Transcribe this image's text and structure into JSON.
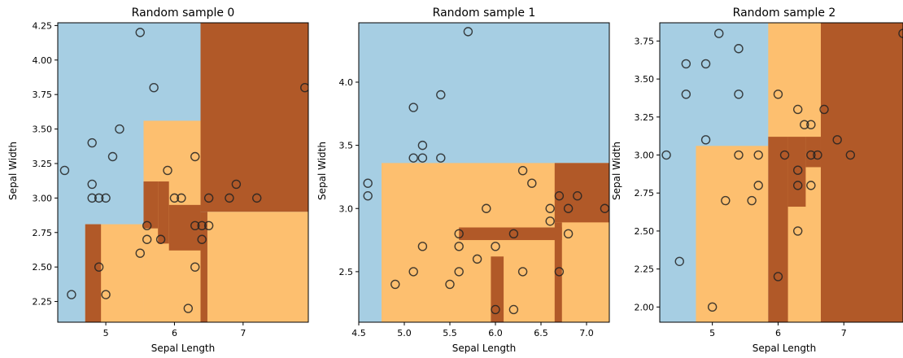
{
  "chart_data": [
    {
      "type": "scatter",
      "title": "Random sample 0",
      "xlabel": "Sepal Length",
      "ylabel": "Sepal Width",
      "xlim": [
        4.3,
        7.95
      ],
      "ylim": [
        2.1,
        4.27
      ],
      "xticks": [
        5,
        6,
        7
      ],
      "yticks": [
        2.25,
        2.5,
        2.75,
        3.0,
        3.25,
        3.5,
        3.75,
        4.0,
        4.25
      ],
      "xtick_labels": [
        "5",
        "6",
        "7"
      ],
      "ytick_labels": [
        "2.25",
        "2.50",
        "2.75",
        "3.00",
        "3.25",
        "3.50",
        "3.75",
        "4.00",
        "4.25"
      ],
      "background_class": 0,
      "regions": [
        {
          "class": 2,
          "x": [
            6.38,
            7.95
          ],
          "y": [
            2.9,
            4.27
          ]
        },
        {
          "class": 1,
          "x": [
            6.48,
            7.95
          ],
          "y": [
            2.1,
            2.9
          ]
        },
        {
          "class": 1,
          "x": [
            5.55,
            6.38
          ],
          "y": [
            2.1,
            3.56
          ]
        },
        {
          "class": 1,
          "x": [
            4.7,
            5.55
          ],
          "y": [
            2.1,
            2.81
          ]
        },
        {
          "class": 2,
          "x": [
            4.7,
            4.93
          ],
          "y": [
            2.1,
            2.81
          ]
        },
        {
          "class": 2,
          "x": [
            5.55,
            5.76
          ],
          "y": [
            2.78,
            3.12
          ]
        },
        {
          "class": 2,
          "x": [
            5.76,
            5.92
          ],
          "y": [
            2.67,
            3.12
          ]
        },
        {
          "class": 2,
          "x": [
            5.92,
            6.38
          ],
          "y": [
            2.62,
            2.95
          ]
        },
        {
          "class": 2,
          "x": [
            6.38,
            6.48
          ],
          "y": [
            2.1,
            2.9
          ]
        }
      ],
      "points": [
        [
          5.5,
          4.2
        ],
        [
          5.7,
          3.8
        ],
        [
          5.2,
          3.5
        ],
        [
          4.8,
          3.4
        ],
        [
          5.1,
          3.3
        ],
        [
          6.3,
          3.3
        ],
        [
          4.4,
          3.2
        ],
        [
          5.9,
          3.2
        ],
        [
          4.8,
          3.1
        ],
        [
          6.9,
          3.1
        ],
        [
          4.8,
          3.0
        ],
        [
          4.9,
          3.0
        ],
        [
          5.0,
          3.0
        ],
        [
          6.0,
          3.0
        ],
        [
          6.1,
          3.0
        ],
        [
          6.5,
          3.0
        ],
        [
          6.8,
          3.0
        ],
        [
          7.2,
          3.0
        ],
        [
          5.6,
          2.8
        ],
        [
          6.3,
          2.8
        ],
        [
          6.4,
          2.8
        ],
        [
          6.5,
          2.8
        ],
        [
          5.6,
          2.7
        ],
        [
          5.8,
          2.7
        ],
        [
          6.4,
          2.7
        ],
        [
          5.5,
          2.6
        ],
        [
          4.9,
          2.5
        ],
        [
          6.3,
          2.5
        ],
        [
          5.0,
          2.3
        ],
        [
          4.5,
          2.3
        ],
        [
          6.2,
          2.2
        ],
        [
          7.9,
          3.8
        ]
      ]
    },
    {
      "type": "scatter",
      "title": "Random sample 1",
      "xlabel": "Sepal Length",
      "ylabel": "Sepal Width",
      "xlim": [
        4.5,
        7.25
      ],
      "ylim": [
        2.1,
        4.47
      ],
      "xticks": [
        4.5,
        5.0,
        5.5,
        6.0,
        6.5,
        7.0
      ],
      "yticks": [
        2.5,
        3.0,
        3.5,
        4.0
      ],
      "xtick_labels": [
        "4.5",
        "5.0",
        "5.5",
        "6.0",
        "6.5",
        "7.0"
      ],
      "ytick_labels": [
        "2.5",
        "3.0",
        "3.5",
        "4.0"
      ],
      "background_class": 0,
      "regions": [
        {
          "class": 1,
          "x": [
            4.75,
            7.25
          ],
          "y": [
            2.1,
            3.36
          ]
        },
        {
          "class": 2,
          "x": [
            6.65,
            7.25
          ],
          "y": [
            2.89,
            3.36
          ]
        },
        {
          "class": 2,
          "x": [
            6.65,
            6.73
          ],
          "y": [
            2.1,
            2.89
          ]
        },
        {
          "class": 2,
          "x": [
            5.6,
            6.73
          ],
          "y": [
            2.75,
            2.85
          ]
        },
        {
          "class": 2,
          "x": [
            5.95,
            6.09
          ],
          "y": [
            2.1,
            2.62
          ]
        }
      ],
      "points": [
        [
          5.7,
          4.4
        ],
        [
          5.4,
          3.9
        ],
        [
          5.1,
          3.8
        ],
        [
          5.2,
          3.5
        ],
        [
          5.1,
          3.4
        ],
        [
          5.2,
          3.4
        ],
        [
          5.4,
          3.4
        ],
        [
          6.3,
          3.3
        ],
        [
          4.6,
          3.2
        ],
        [
          6.4,
          3.2
        ],
        [
          4.6,
          3.1
        ],
        [
          6.7,
          3.1
        ],
        [
          6.9,
          3.1
        ],
        [
          5.9,
          3.0
        ],
        [
          6.6,
          3.0
        ],
        [
          6.8,
          3.0
        ],
        [
          7.2,
          3.0
        ],
        [
          6.6,
          2.9
        ],
        [
          5.6,
          2.8
        ],
        [
          6.2,
          2.8
        ],
        [
          6.8,
          2.8
        ],
        [
          5.2,
          2.7
        ],
        [
          5.6,
          2.7
        ],
        [
          6.0,
          2.7
        ],
        [
          5.8,
          2.6
        ],
        [
          5.1,
          2.5
        ],
        [
          5.6,
          2.5
        ],
        [
          6.3,
          2.5
        ],
        [
          6.7,
          2.5
        ],
        [
          4.9,
          2.4
        ],
        [
          5.5,
          2.4
        ],
        [
          6.0,
          2.2
        ],
        [
          6.2,
          2.2
        ]
      ]
    },
    {
      "type": "scatter",
      "title": "Random sample 2",
      "xlabel": "Sepal Length",
      "ylabel": "Sepal Width",
      "xlim": [
        4.2,
        7.9
      ],
      "ylim": [
        1.9,
        3.87
      ],
      "xticks": [
        5,
        6,
        7
      ],
      "yticks": [
        2.0,
        2.25,
        2.5,
        2.75,
        3.0,
        3.25,
        3.5,
        3.75
      ],
      "xtick_labels": [
        "5",
        "6",
        "7"
      ],
      "ytick_labels": [
        "2.00",
        "2.25",
        "2.50",
        "2.75",
        "3.00",
        "3.25",
        "3.50",
        "3.75"
      ],
      "background_class": 0,
      "regions": [
        {
          "class": 1,
          "x": [
            4.75,
            5.85
          ],
          "y": [
            1.9,
            3.06
          ]
        },
        {
          "class": 1,
          "x": [
            5.85,
            6.65
          ],
          "y": [
            1.9,
            3.87
          ]
        },
        {
          "class": 2,
          "x": [
            6.65,
            7.9
          ],
          "y": [
            1.9,
            3.87
          ]
        },
        {
          "class": 2,
          "x": [
            5.85,
            6.15
          ],
          "y": [
            1.9,
            3.12
          ]
        },
        {
          "class": 2,
          "x": [
            6.15,
            6.42
          ],
          "y": [
            2.66,
            3.12
          ]
        },
        {
          "class": 2,
          "x": [
            6.42,
            6.65
          ],
          "y": [
            2.92,
            3.12
          ]
        }
      ],
      "points": [
        [
          7.9,
          3.8
        ],
        [
          5.1,
          3.8
        ],
        [
          5.4,
          3.7
        ],
        [
          4.6,
          3.6
        ],
        [
          4.9,
          3.6
        ],
        [
          4.6,
          3.4
        ],
        [
          5.4,
          3.4
        ],
        [
          6.0,
          3.4
        ],
        [
          6.3,
          3.3
        ],
        [
          6.7,
          3.3
        ],
        [
          6.4,
          3.2
        ],
        [
          6.5,
          3.2
        ],
        [
          4.9,
          3.1
        ],
        [
          6.9,
          3.1
        ],
        [
          4.3,
          3.0
        ],
        [
          5.4,
          3.0
        ],
        [
          5.7,
          3.0
        ],
        [
          6.1,
          3.0
        ],
        [
          6.5,
          3.0
        ],
        [
          6.6,
          3.0
        ],
        [
          7.1,
          3.0
        ],
        [
          6.3,
          2.9
        ],
        [
          5.7,
          2.8
        ],
        [
          6.3,
          2.8
        ],
        [
          6.5,
          2.8
        ],
        [
          5.2,
          2.7
        ],
        [
          5.6,
          2.7
        ],
        [
          6.3,
          2.5
        ],
        [
          4.5,
          2.3
        ],
        [
          6.0,
          2.2
        ],
        [
          5.0,
          2.0
        ]
      ]
    }
  ],
  "colors": {
    "class0": "#a6cee3",
    "class1": "#fdbf6f",
    "class2": "#b15928"
  }
}
